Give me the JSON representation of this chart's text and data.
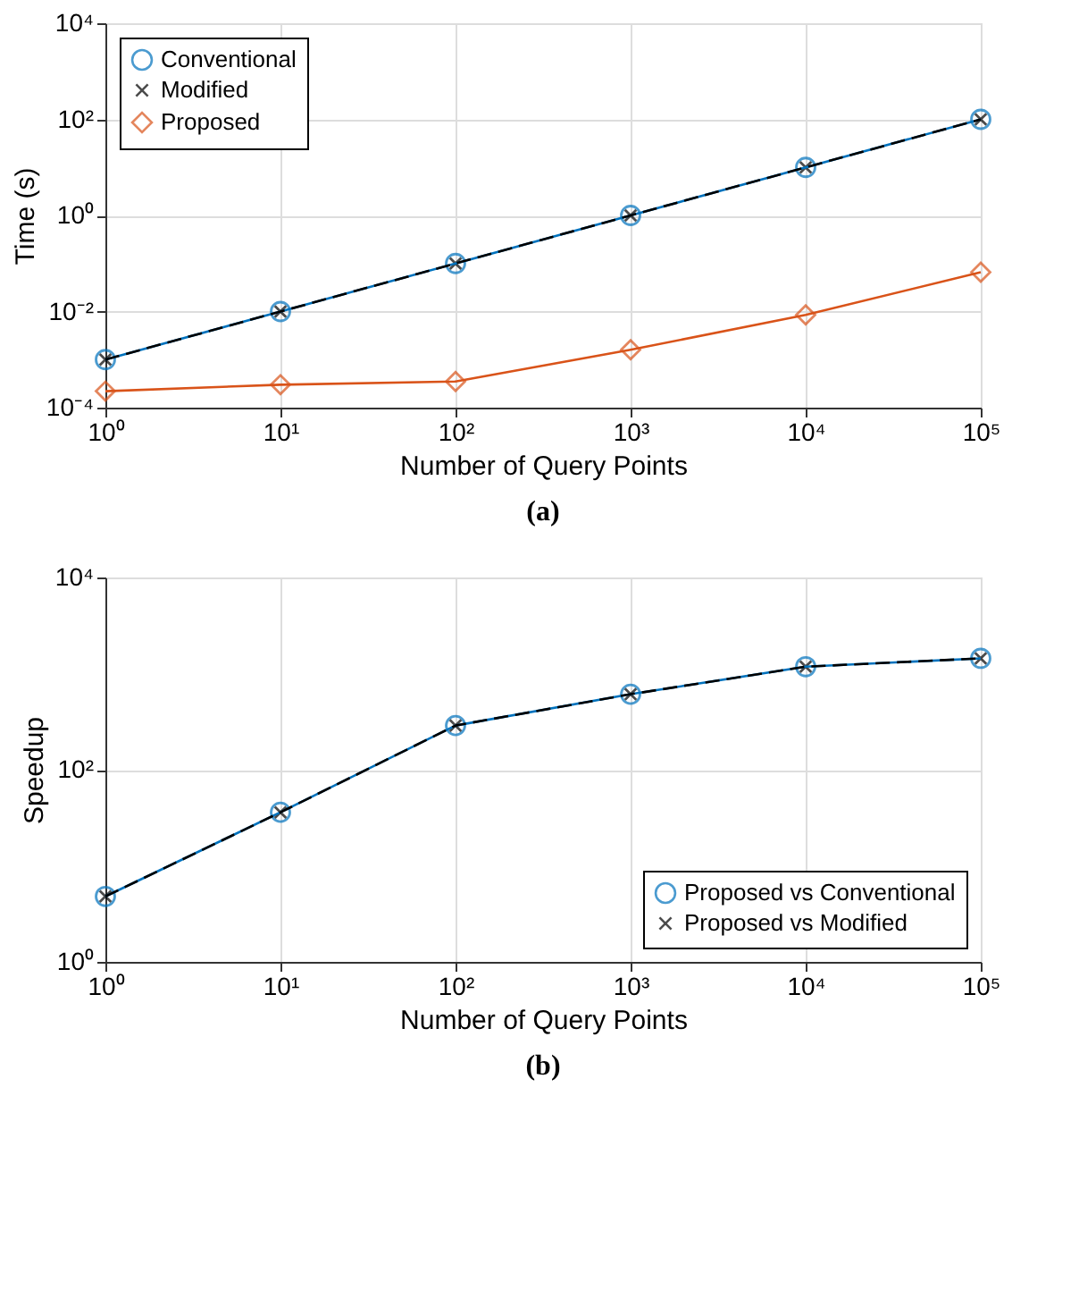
{
  "chart_data": [
    {
      "type": "line",
      "xlabel": "Number of Query Points",
      "ylabel": "Time (s)",
      "annotations": [
        "(a)"
      ],
      "log": "xy",
      "grid": true,
      "legend": "top left",
      "x": [
        1,
        10,
        100,
        1000,
        10000,
        100000
      ],
      "xlim": [
        1,
        100000
      ],
      "xticks": [
        {
          "value": 1,
          "label": "10⁰"
        },
        {
          "value": 10,
          "label": "10¹"
        },
        {
          "value": 100,
          "label": "10²"
        },
        {
          "value": 1000,
          "label": "10³"
        },
        {
          "value": 10000,
          "label": "10⁴"
        },
        {
          "value": 100000,
          "label": "10⁵"
        }
      ],
      "ylim": [
        0.0001,
        10000
      ],
      "yticks": [
        {
          "value": 0.0001,
          "label": "10⁻⁴"
        },
        {
          "value": 0.01,
          "label": "10⁻²"
        },
        {
          "value": 1,
          "label": "10⁰"
        },
        {
          "value": 100,
          "label": "10²"
        },
        {
          "value": 10000,
          "label": "10⁴"
        }
      ],
      "series": [
        {
          "name": "Conventional",
          "color": "#0072bd",
          "marker": "circle",
          "line_style": "solid",
          "values": [
            0.001,
            0.01,
            0.1,
            1,
            10,
            100
          ]
        },
        {
          "name": "Modified",
          "color": "#000000",
          "marker": "cross",
          "line_style": "dashed",
          "values": [
            0.001,
            0.01,
            0.1,
            1,
            10,
            100
          ]
        },
        {
          "name": "Proposed",
          "color": "#d95319",
          "marker": "diamond",
          "line_style": "solid",
          "values": [
            0.00022,
            0.0003,
            0.00035,
            0.0016,
            0.0085,
            0.066
          ]
        }
      ]
    },
    {
      "type": "line",
      "xlabel": "Number of Query Points",
      "ylabel": "Speedup",
      "annotations": [
        "(b)"
      ],
      "log": "xy",
      "grid": true,
      "legend": "bottom right",
      "x": [
        1,
        10,
        100,
        1000,
        10000,
        100000
      ],
      "xlim": [
        1,
        100000
      ],
      "xticks": [
        {
          "value": 1,
          "label": "10⁰"
        },
        {
          "value": 10,
          "label": "10¹"
        },
        {
          "value": 100,
          "label": "10²"
        },
        {
          "value": 1000,
          "label": "10³"
        },
        {
          "value": 10000,
          "label": "10⁴"
        },
        {
          "value": 100000,
          "label": "10⁵"
        }
      ],
      "ylim": [
        1,
        10000
      ],
      "yticks": [
        {
          "value": 1,
          "label": "10⁰"
        },
        {
          "value": 100,
          "label": "10²"
        },
        {
          "value": 10000,
          "label": "10⁴"
        }
      ],
      "series": [
        {
          "name": "Proposed vs Conventional",
          "color": "#0072bd",
          "marker": "circle",
          "line_style": "solid",
          "values": [
            4.8,
            36,
            288,
            610,
            1180,
            1440
          ]
        },
        {
          "name": "Proposed vs Modified",
          "color": "#000000",
          "marker": "cross",
          "line_style": "dashed",
          "values": [
            4.8,
            36,
            288,
            610,
            1180,
            1440
          ]
        }
      ]
    }
  ]
}
